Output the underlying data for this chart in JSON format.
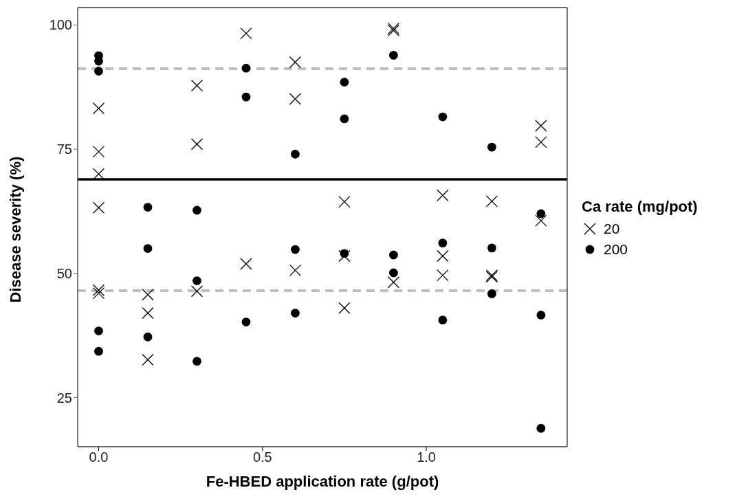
{
  "chart_data": {
    "type": "scatter",
    "xlabel": "Fe-HBED application rate (g/pot)",
    "ylabel": "Disease severity (%)",
    "legend_title": "Ca rate (mg/pot)",
    "legend": "right",
    "grid": false,
    "xlim": [
      -0.064,
      1.43
    ],
    "ylim": [
      15.1,
      103.5
    ],
    "xticks": [
      {
        "value": 0,
        "label": "0.0"
      },
      0.5,
      {
        "value": 1,
        "label": "1.0"
      }
    ],
    "yticks": [
      25,
      50,
      75,
      100
    ],
    "series": [
      {
        "name": "20",
        "color": "#000000",
        "marker": "cross",
        "x": [
          0,
          0,
          0,
          0,
          0,
          0,
          0.15,
          0.15,
          0.15,
          0.3,
          0.3,
          0.3,
          0.45,
          0.45,
          0.6,
          0.6,
          0.6,
          0.75,
          0.75,
          0.75,
          0.9,
          0.9,
          0.9,
          1.05,
          1.05,
          1.05,
          1.2,
          1.2,
          1.2,
          1.35,
          1.35,
          1.35
        ],
        "values": [
          83.2,
          74.5,
          70,
          63.2,
          46.6,
          46.0,
          45.7,
          42.0,
          32.6,
          87.8,
          76.0,
          46.4,
          98.3,
          51.9,
          92.5,
          85.1,
          50.6,
          64.4,
          53.5,
          43.0,
          99.3,
          98.9,
          48.2,
          65.7,
          53.5,
          49.6,
          64.5,
          49.6,
          49.3,
          79.7,
          76.4,
          60.6
        ]
      },
      {
        "name": "200",
        "color": "#000000",
        "marker": "circle",
        "x": [
          0,
          0,
          0,
          0,
          0,
          0.15,
          0.15,
          0.15,
          0.3,
          0.3,
          0.3,
          0.45,
          0.45,
          0.45,
          0.6,
          0.6,
          0.6,
          0.75,
          0.75,
          0.75,
          0.9,
          0.9,
          0.9,
          1.05,
          1.05,
          1.05,
          1.2,
          1.2,
          1.2,
          1.35,
          1.35,
          1.35
        ],
        "values": [
          93.8,
          92.7,
          90.7,
          38.4,
          34.3,
          63.3,
          55.0,
          37.2,
          62.7,
          48.5,
          32.3,
          91.3,
          85.5,
          40.2,
          74.0,
          54.8,
          42.0,
          88.5,
          81.1,
          54.0,
          93.9,
          53.7,
          50.1,
          81.5,
          56.1,
          40.6,
          75.4,
          55.1,
          45.9,
          62.0,
          41.6,
          18.8
        ]
      }
    ],
    "ref_lines": [
      {
        "axis": "y",
        "value": 91.2,
        "color": "#bebebe",
        "line_style": "dashed"
      },
      {
        "axis": "y",
        "value": 68.9,
        "color": "#000000",
        "line_style": "solid"
      },
      {
        "axis": "y",
        "value": 46.5,
        "color": "#bebebe",
        "line_style": "dashed"
      }
    ]
  }
}
